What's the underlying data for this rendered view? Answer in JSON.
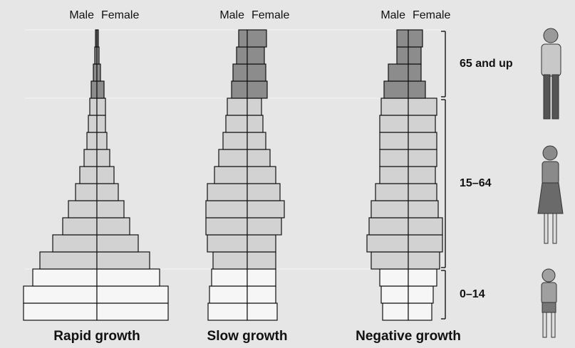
{
  "chart_data": [
    {
      "type": "pyramid",
      "title": "Rapid growth",
      "series": [
        {
          "name": "Male",
          "values": [
            103,
            103,
            90,
            80,
            62,
            48,
            40,
            30,
            24,
            18,
            14,
            12,
            10,
            8,
            5,
            3,
            2
          ]
        },
        {
          "name": "Female",
          "values": [
            100,
            100,
            88,
            74,
            58,
            46,
            38,
            30,
            24,
            18,
            14,
            12,
            12,
            10,
            5,
            3,
            2
          ]
        }
      ]
    },
    {
      "type": "pyramid",
      "title": "Slow growth",
      "series": [
        {
          "name": "Male",
          "values": [
            55,
            53,
            50,
            48,
            56,
            58,
            58,
            56,
            46,
            40,
            34,
            30,
            28,
            22,
            20,
            15,
            12
          ]
        },
        {
          "name": "Female",
          "values": [
            42,
            40,
            40,
            40,
            40,
            48,
            52,
            46,
            40,
            32,
            26,
            22,
            20,
            28,
            26,
            24,
            27
          ]
        }
      ]
    },
    {
      "type": "pyramid",
      "title": "Negative growth",
      "series": [
        {
          "name": "Male",
          "values": [
            36,
            38,
            40,
            52,
            58,
            55,
            52,
            46,
            40,
            40,
            40,
            40,
            38,
            34,
            28,
            16,
            16
          ]
        },
        {
          "name": "Female",
          "values": [
            33,
            35,
            40,
            44,
            48,
            48,
            42,
            40,
            38,
            40,
            40,
            38,
            40,
            24,
            18,
            18,
            20
          ]
        }
      ]
    }
  ],
  "age_groups": [
    {
      "label": "0–14",
      "rows": 3,
      "color": "#f6f6f6"
    },
    {
      "label": "15–64",
      "rows": 10,
      "color": "#d2d2d2"
    },
    {
      "label": "65 and up",
      "rows": 4,
      "color": "#8c8c8c"
    }
  ]
}
